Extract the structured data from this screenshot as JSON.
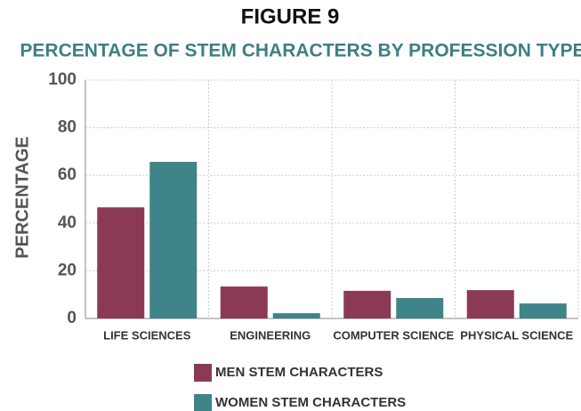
{
  "chart_data": {
    "type": "bar",
    "title": "FIGURE 9",
    "subtitle": "PERCENTAGE OF STEM CHARACTERS BY PROFESSION TYPE",
    "y_label": "PERCENTAGE",
    "categories": [
      "LIFE SCIENCES",
      "ENGINEERING",
      "COMPUTER SCIENCE",
      "PHYSICAL SCIENCE"
    ],
    "series": [
      {
        "name": "MEN STEM CHARACTERS",
        "color": "#8b3a56",
        "values": [
          46.6,
          13.4,
          11.6,
          11.9
        ]
      },
      {
        "name": "WOMEN STEM CHARACTERS",
        "color": "#3e8488",
        "values": [
          65.7,
          2.2,
          8.6,
          6.3
        ]
      }
    ],
    "ylim": [
      0,
      100
    ],
    "yticks": [
      0,
      20,
      40,
      60,
      80,
      100
    ],
    "grid": true,
    "legend": "bottom"
  }
}
